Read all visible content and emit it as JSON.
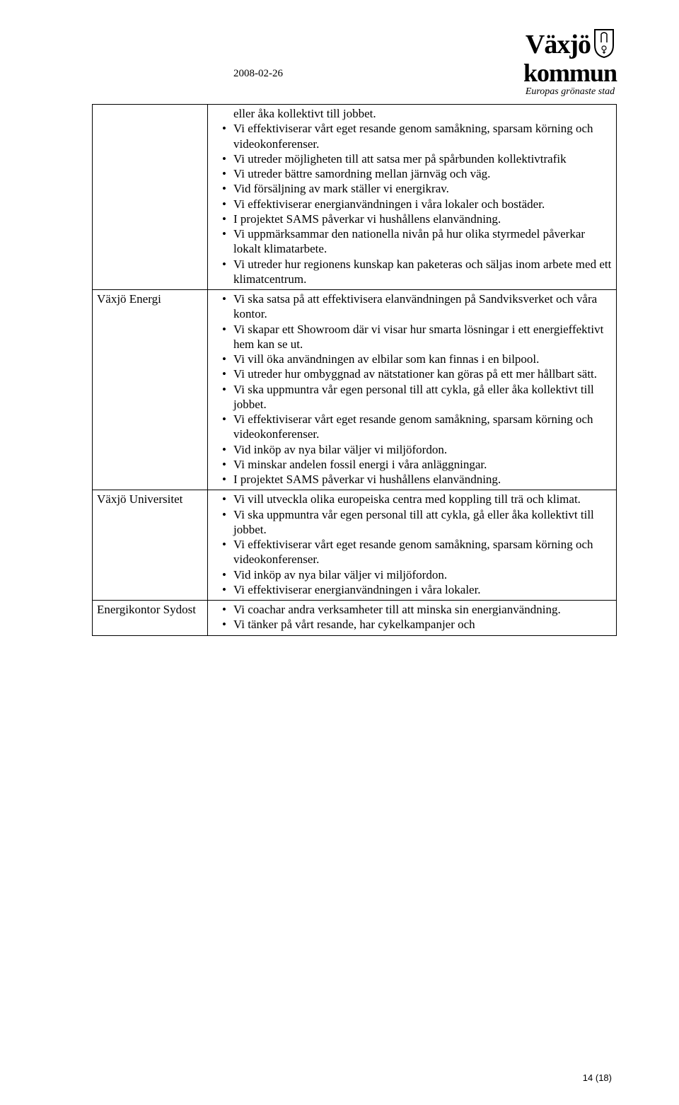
{
  "header": {
    "date": "2008-02-26",
    "logo": {
      "line1": "Växjö",
      "line2": "kommun",
      "tagline": "Europas grönaste stad"
    }
  },
  "table": {
    "rows": [
      {
        "label": "",
        "bullets": [
          "eller åka kollektivt till jobbet.",
          "Vi effektiviserar vårt eget resande genom samåkning, sparsam körning och videokonferenser.",
          "Vi utreder möjligheten till att satsa mer på spårbunden kollektivtrafik",
          "Vi utreder bättre samordning mellan järnväg och väg.",
          "Vid försäljning av mark ställer vi energikrav.",
          "Vi effektiviserar energianvändningen i våra lokaler och bostäder.",
          "I projektet SAMS påverkar vi hushållens elanvändning.",
          "Vi uppmärksammar den nationella nivån på hur olika styrmedel påverkar lokalt klimatarbete.",
          "Vi utreder hur regionens kunskap kan paketeras och säljas inom arbete med ett klimatcentrum."
        ],
        "first_is_continuation": true
      },
      {
        "label": "Växjö Energi",
        "bullets": [
          "Vi ska satsa på att effektivisera elanvändningen på Sandviksverket och våra kontor.",
          "Vi skapar ett Showroom där vi visar hur smarta lösningar i ett energieffektivt hem kan se ut.",
          "Vi vill öka användningen av elbilar som kan finnas i en bilpool.",
          "Vi utreder hur ombyggnad av nätstationer kan göras på ett mer hållbart sätt.",
          "Vi ska uppmuntra vår egen personal till att cykla, gå eller åka kollektivt till jobbet.",
          "Vi effektiviserar vårt eget resande genom samåkning, sparsam körning och videokonferenser.",
          "Vid inköp av nya bilar väljer vi miljöfordon.",
          "Vi minskar andelen fossil energi i våra anläggningar.",
          "I projektet SAMS påverkar vi hushållens elanvändning."
        ],
        "first_is_continuation": false
      },
      {
        "label": "Växjö Universitet",
        "bullets": [
          "Vi vill utveckla olika europeiska centra med koppling till trä och klimat.",
          "Vi ska uppmuntra vår egen personal till att cykla, gå eller åka kollektivt till jobbet.",
          "Vi effektiviserar vårt eget resande genom samåkning, sparsam körning och videokonferenser.",
          "Vid inköp av nya bilar väljer vi miljöfordon.",
          "Vi effektiviserar energianvändningen i våra lokaler."
        ],
        "first_is_continuation": false
      },
      {
        "label": "Energikontor Sydost",
        "bullets": [
          "Vi coachar andra verksamheter till att minska sin energianvändning.",
          "Vi tänker på vårt resande, har cykelkampanjer och"
        ],
        "first_is_continuation": false
      }
    ]
  },
  "footer": {
    "page_number": "14 (18)"
  },
  "colors": {
    "text": "#000000",
    "background": "#ffffff",
    "border": "#000000"
  }
}
